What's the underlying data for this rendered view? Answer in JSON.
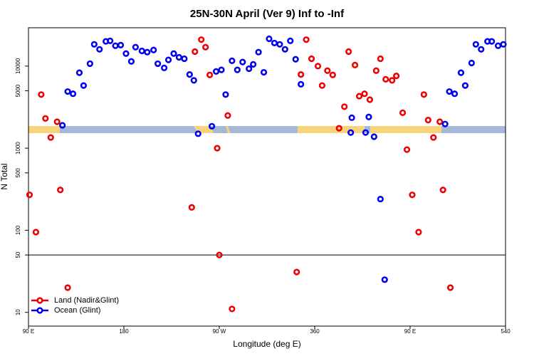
{
  "chart_data": {
    "type": "scatter",
    "title": "25N-30N April (Ver 9)   Inf to -Inf",
    "x_label": "Longitude (deg E)",
    "y_label": "N Total",
    "log_y": true,
    "xlim": [
      90,
      540
    ],
    "ylim": [
      6.8,
      29300
    ],
    "xticks": [
      {
        "value": 90,
        "label": "90 E"
      },
      180,
      {
        "value": 270,
        "label": "90 W"
      },
      360,
      {
        "value": 450,
        "label": "90 E"
      },
      540
    ],
    "yticks": [
      10,
      50,
      100,
      500,
      1000,
      5000,
      10000
    ],
    "hline": 50,
    "legend": "bottom-left",
    "series": [
      {
        "name": "Land (Nadir&Glint)",
        "color": "#ee0000",
        "x": [
          91,
          97,
          102,
          106,
          111,
          117,
          120,
          127,
          244,
          247,
          253,
          257,
          261,
          268,
          270,
          278,
          282,
          343,
          347,
          352,
          357,
          363,
          367,
          372,
          377,
          383,
          388,
          392,
          398,
          402,
          407,
          412,
          418,
          422,
          427,
          433,
          437,
          443,
          447,
          452,
          458,
          463,
          467,
          472,
          478,
          481,
          488
        ],
        "values": [
          270,
          95,
          4500,
          2300,
          1350,
          2100,
          310,
          20,
          190,
          15000,
          21000,
          17000,
          7800,
          1000,
          50,
          2500,
          11,
          31,
          7900,
          21000,
          12300,
          10000,
          5800,
          8800,
          7800,
          1750,
          3200,
          15000,
          10300,
          4300,
          4600,
          3900,
          8800,
          12300,
          6900,
          6700,
          7600,
          2700,
          960,
          270,
          95,
          4500,
          2200,
          1350,
          2100,
          310,
          20
        ]
      },
      {
        "name": "Ocean (Glint)",
        "color": "#0000ee",
        "x": [
          122,
          127,
          132,
          138,
          142,
          148,
          152,
          157,
          163,
          167,
          172,
          177,
          182,
          187,
          191,
          197,
          202,
          208,
          212,
          218,
          222,
          227,
          232,
          237,
          242,
          246,
          250,
          263,
          267,
          272,
          276,
          282,
          287,
          292,
          298,
          302,
          307,
          312,
          317,
          322,
          327,
          332,
          337,
          342,
          347,
          394,
          395,
          408,
          411,
          416,
          422,
          426,
          483,
          487,
          492,
          498,
          502,
          508,
          512,
          517,
          523,
          527,
          533,
          538
        ],
        "values": [
          1900,
          4900,
          4600,
          8300,
          5800,
          10700,
          18400,
          16000,
          20000,
          20300,
          17700,
          18000,
          14200,
          11400,
          17000,
          15300,
          14800,
          15700,
          10700,
          9500,
          11900,
          14200,
          12800,
          12300,
          7900,
          6700,
          1500,
          1850,
          8600,
          9000,
          4500,
          11600,
          9000,
          11200,
          9300,
          10500,
          14800,
          8400,
          21500,
          19100,
          18400,
          16000,
          20300,
          12100,
          6000,
          1550,
          2350,
          1550,
          2400,
          1380,
          240,
          25,
          1970,
          4900,
          4600,
          8300,
          5800,
          10900,
          18400,
          16000,
          20000,
          20000,
          17700,
          18400
        ]
      }
    ]
  }
}
